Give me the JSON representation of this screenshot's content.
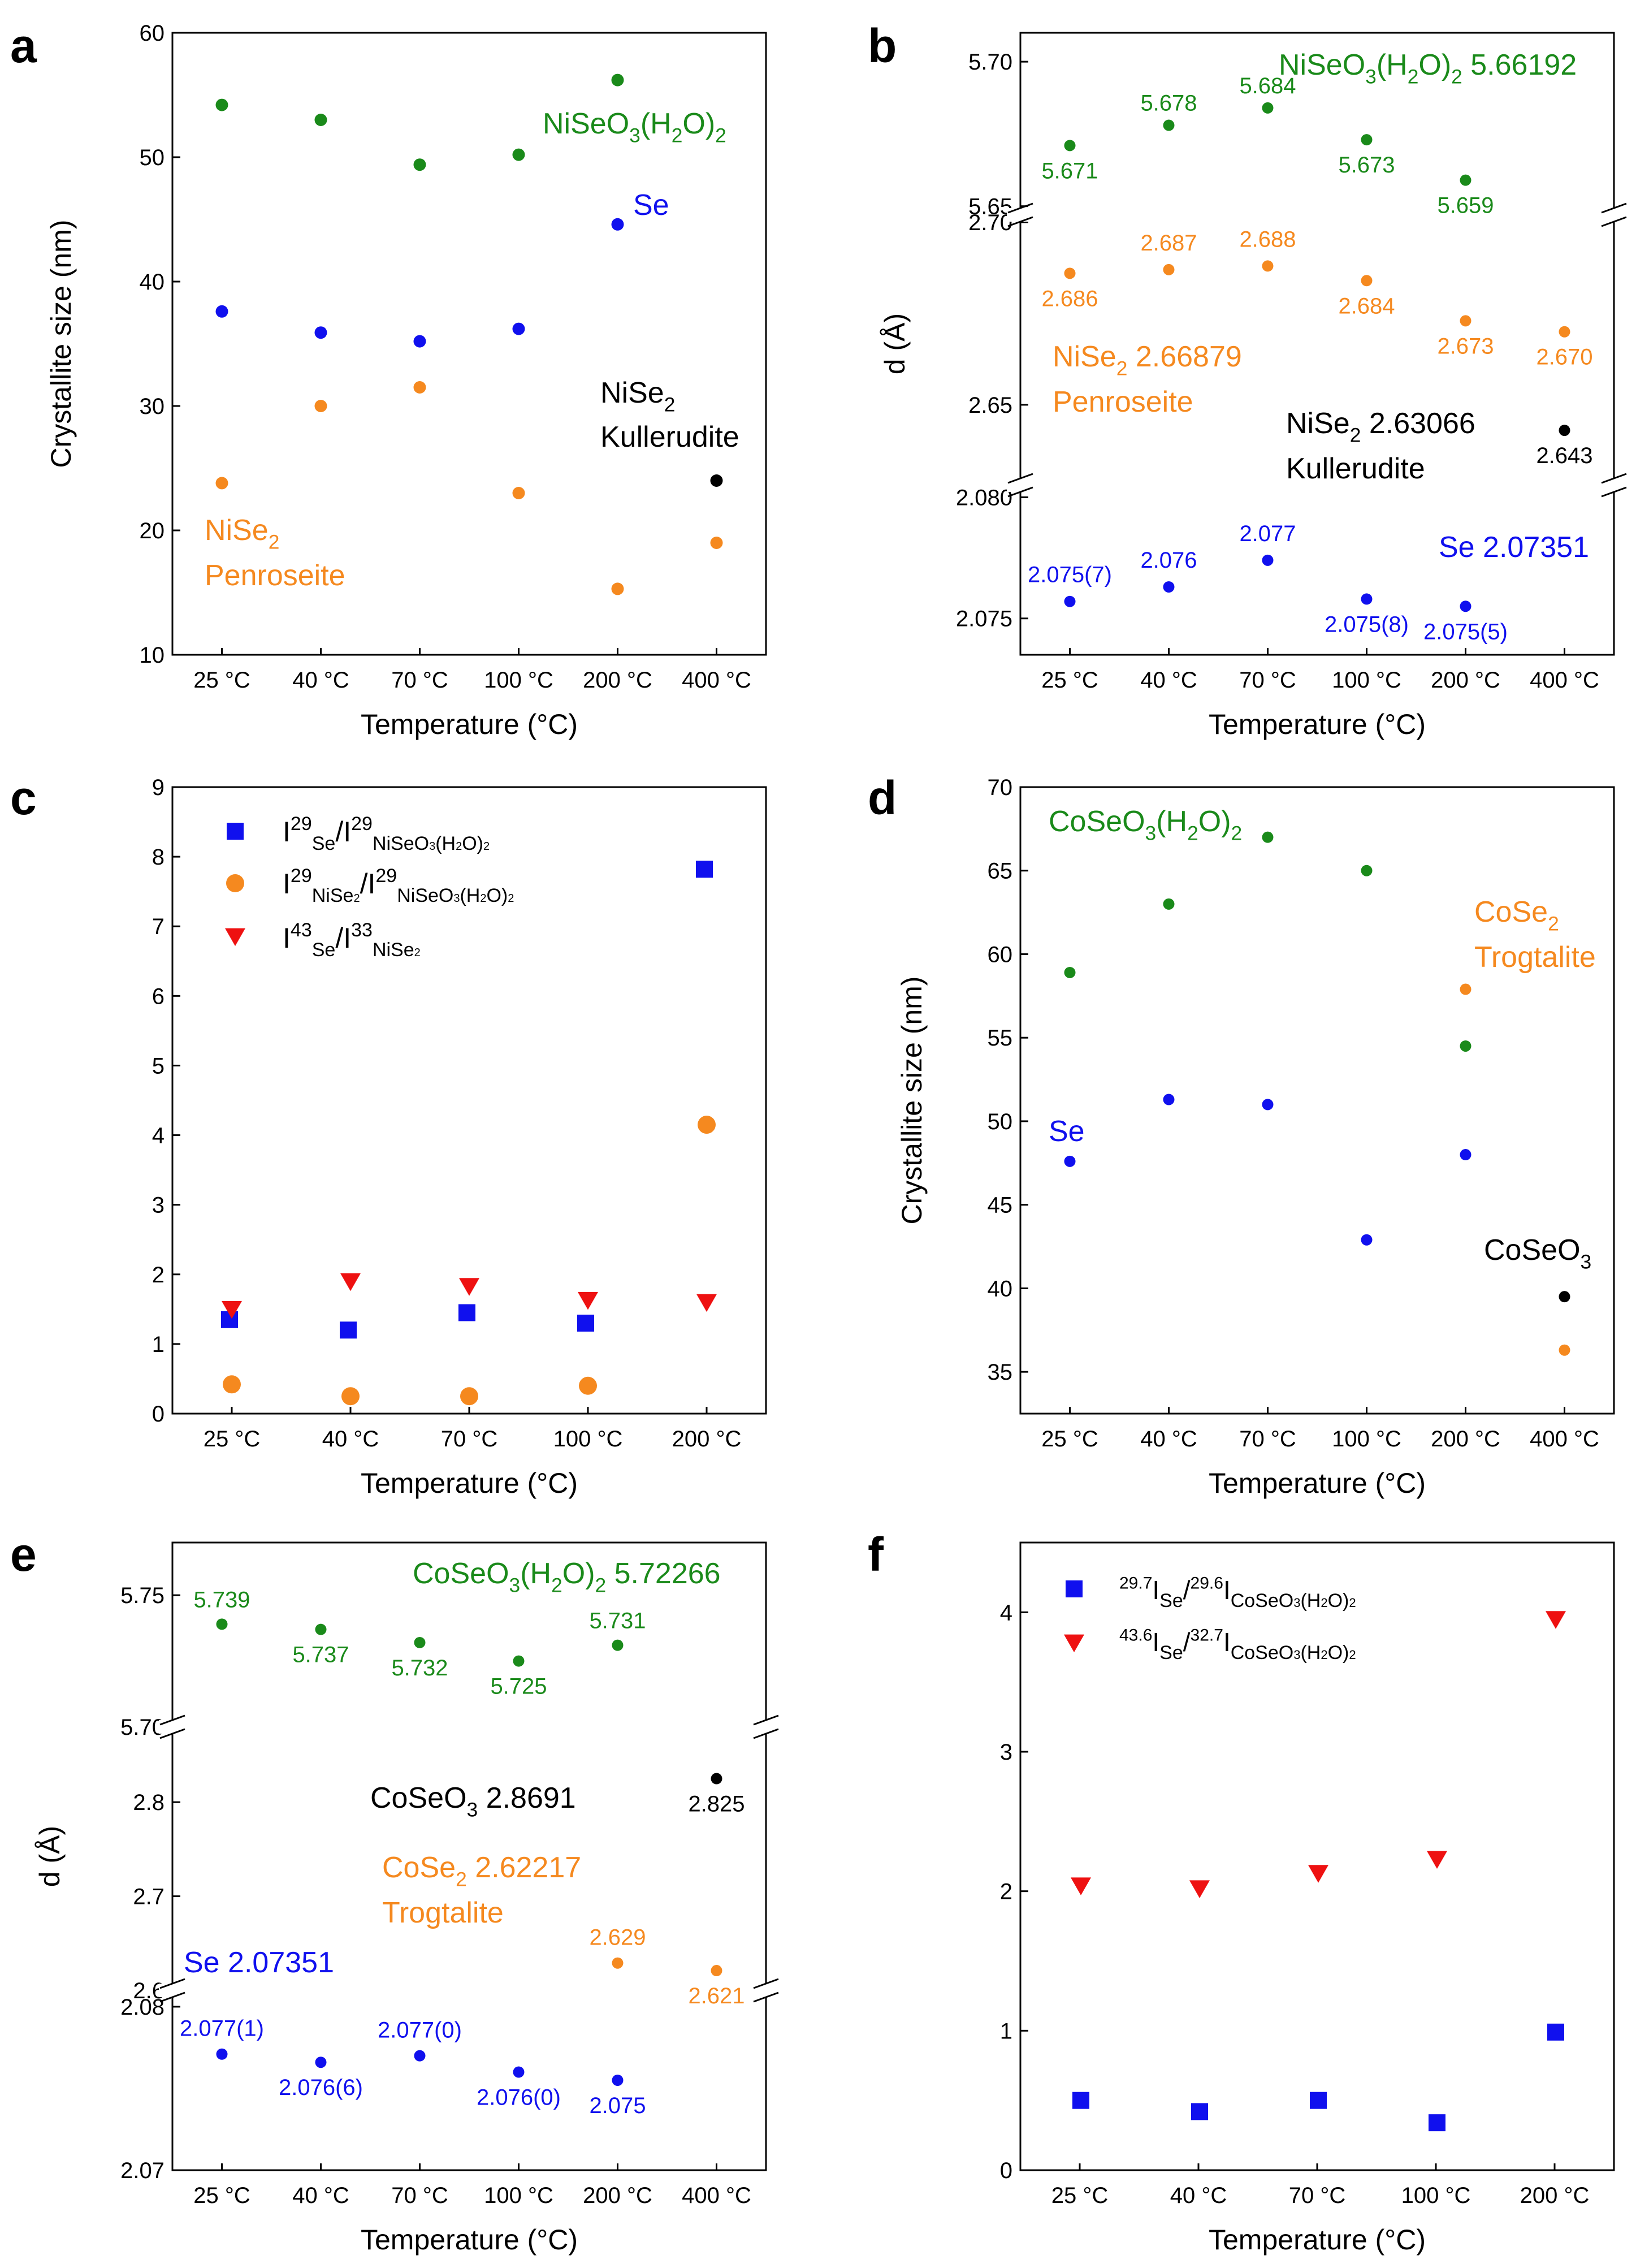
{
  "figure": {
    "temperatures6": [
      "25 °C",
      "40 °C",
      "70 °C",
      "100 °C",
      "200 °C",
      "400 °C"
    ],
    "temperatures5": [
      "25 °C",
      "40 °C",
      "70 °C",
      "100 °C",
      "200 °C"
    ],
    "xlabel": "Temperature (°C)",
    "colors": {
      "green": "#1a8a1a",
      "blue": "#1010ee",
      "orange": "#f5891f",
      "black": "#000000",
      "red": "#ee1111"
    }
  },
  "chart_data": [
    {
      "panel": "a",
      "type": "scatter",
      "xlabel": "Temperature (°C)",
      "ylabel": "Crystallite  size (nm)",
      "categories": [
        "25 °C",
        "40 °C",
        "70 °C",
        "100 °C",
        "200 °C",
        "400 °C"
      ],
      "ylim": [
        10,
        60
      ],
      "yticks": [
        10,
        20,
        30,
        40,
        50,
        60
      ],
      "series": [
        {
          "name": "NiSeO3(H2O)2",
          "color": "#1a8a1a",
          "values": [
            54.2,
            53.0,
            49.4,
            50.2,
            56.2,
            null
          ]
        },
        {
          "name": "Se",
          "color": "#1010ee",
          "values": [
            37.6,
            35.9,
            35.2,
            36.2,
            44.6,
            null
          ]
        },
        {
          "name": "NiSe2 Penroseite",
          "color": "#f5891f",
          "values": [
            23.8,
            30.0,
            31.5,
            23.0,
            15.3,
            19.0
          ]
        },
        {
          "name": "NiSe2 Kullerudite",
          "color": "#000000",
          "values": [
            null,
            null,
            null,
            null,
            null,
            24.0
          ]
        }
      ],
      "annotations": {
        "green": "NiSeO3(H2O)2",
        "blue": "Se",
        "black1": "NiSe2",
        "black2": "Kullerudite",
        "orange1": "NiSe2",
        "orange2": "Penroseite"
      }
    },
    {
      "panel": "b",
      "type": "scatter",
      "broken_axis": true,
      "xlabel": "Temperature (°C)",
      "ylabel": "d (Å)",
      "categories": [
        "25 °C",
        "40 °C",
        "70 °C",
        "100 °C",
        "200 °C",
        "400 °C"
      ],
      "segments": [
        {
          "ylim": [
            5.647,
            5.71
          ],
          "yticks": [
            "5.65",
            "5.70"
          ]
        },
        {
          "ylim": [
            2.628,
            2.702
          ],
          "yticks": [
            "2.65",
            "2.70"
          ]
        },
        {
          "ylim": [
            2.0735,
            2.0805
          ],
          "yticks": [
            "2.075",
            "2.080"
          ]
        }
      ],
      "series": [
        {
          "name": "NiSeO3(H2O)2",
          "color": "#1a8a1a",
          "segment": 0,
          "values": [
            5.671,
            5.678,
            5.684,
            5.673,
            5.659,
            null
          ],
          "labels": [
            "5.671",
            "5.678",
            "5.684",
            "5.673",
            "5.659",
            ""
          ]
        },
        {
          "name": "NiSe2 Penroseite",
          "color": "#f5891f",
          "segment": 1,
          "values": [
            2.686,
            2.687,
            2.688,
            2.684,
            2.673,
            2.67
          ],
          "labels": [
            "2.686",
            "2.687",
            "2.688",
            "2.684",
            "2.673",
            "2.670"
          ]
        },
        {
          "name": "NiSe2 Kullerudite",
          "color": "#000000",
          "segment": 1,
          "values": [
            null,
            null,
            null,
            null,
            null,
            2.643
          ],
          "labels": [
            "",
            "",
            "",
            "",
            "",
            "2.643"
          ]
        },
        {
          "name": "Se",
          "color": "#1010ee",
          "segment": 2,
          "values": [
            2.0757,
            2.0763,
            2.0774,
            2.0758,
            2.0755,
            null
          ],
          "labels": [
            "2.075(7)",
            "2.076",
            "2.077",
            "2.075(8)",
            "2.075(5)",
            ""
          ]
        }
      ],
      "annotations": {
        "green1": "NiSeO3(H2O)2 5.66192",
        "orange1": "NiSe2 2.66879",
        "orange2": "Penroseite",
        "black1": "NiSe2  2.63066",
        "black2": "Kullerudite",
        "blue1": "Se 2.07351"
      }
    },
    {
      "panel": "c",
      "type": "scatter",
      "xlabel": "Temperature (°C)",
      "ylabel": "",
      "categories": [
        "25 °C",
        "40 °C",
        "70 °C",
        "100 °C",
        "200 °C"
      ],
      "ylim": [
        0,
        9
      ],
      "yticks": [
        0,
        1,
        2,
        3,
        4,
        5,
        6,
        7,
        8,
        9
      ],
      "series": [
        {
          "name": "I29Se/I29NiSeO3(H2O)2",
          "color": "#1010ee",
          "marker": "square",
          "values": [
            1.35,
            1.2,
            1.45,
            1.3,
            7.82
          ]
        },
        {
          "name": "I29NiSe2/I29NiSeO3(H2O)2",
          "color": "#f5891f",
          "marker": "circle",
          "values": [
            0.42,
            0.25,
            0.25,
            0.4,
            4.15
          ]
        },
        {
          "name": "I43Se/I33NiSe2",
          "color": "#ee1111",
          "marker": "triangle-down",
          "values": [
            1.5,
            1.9,
            1.83,
            1.63,
            1.6
          ]
        }
      ]
    },
    {
      "panel": "d",
      "type": "scatter",
      "xlabel": "Temperature (°C)",
      "ylabel": "Crystallite  size (nm)",
      "categories": [
        "25 °C",
        "40 °C",
        "70 °C",
        "100 °C",
        "200 °C",
        "400 °C"
      ],
      "ylim": [
        32.5,
        70
      ],
      "yticks": [
        35,
        40,
        45,
        50,
        55,
        60,
        65,
        70
      ],
      "series": [
        {
          "name": "CoSeO3(H2O)2",
          "color": "#1a8a1a",
          "values": [
            58.9,
            63.0,
            67.0,
            65.0,
            54.5,
            null
          ]
        },
        {
          "name": "Se",
          "color": "#1010ee",
          "values": [
            47.6,
            51.3,
            51.0,
            42.9,
            48.0,
            null
          ]
        },
        {
          "name": "CoSe2 Trogtalite",
          "color": "#f5891f",
          "values": [
            null,
            null,
            null,
            null,
            57.9,
            36.3
          ]
        },
        {
          "name": "CoSeO3",
          "color": "#000000",
          "values": [
            null,
            null,
            null,
            null,
            null,
            39.5
          ]
        }
      ],
      "annotations": {
        "green": "CoSeO3(H2O)2",
        "orange1": "CoSe2",
        "orange2": "Trogtalite",
        "blue": "Se",
        "black": "CoSeO3"
      }
    },
    {
      "panel": "e",
      "type": "scatter",
      "broken_axis": true,
      "xlabel": "Temperature (°C)",
      "ylabel": "d (Å)",
      "categories": [
        "25 °C",
        "40 °C",
        "70 °C",
        "100 °C",
        "200 °C",
        "400 °C"
      ],
      "segments": [
        {
          "ylim": [
            5.7,
            5.77
          ],
          "yticks": [
            "5.70",
            "5.75"
          ]
        },
        {
          "ylim": [
            2.6,
            2.88
          ],
          "yticks": [
            "2.6",
            "2.7",
            "2.8"
          ]
        },
        {
          "ylim": [
            2.07,
            2.081
          ],
          "yticks": [
            "2.07",
            "2.08"
          ]
        }
      ],
      "series": [
        {
          "name": "CoSeO3(H2O)2",
          "color": "#1a8a1a",
          "segment": 0,
          "values": [
            5.739,
            5.737,
            5.732,
            5.725,
            5.731,
            null
          ],
          "labels": [
            "5.739",
            "5.737",
            "5.732",
            "5.725",
            "5.731",
            ""
          ]
        },
        {
          "name": "CoSeO3",
          "color": "#000000",
          "segment": 1,
          "values": [
            null,
            null,
            null,
            null,
            null,
            2.825
          ],
          "labels": [
            "",
            "",
            "",
            "",
            "",
            "2.825"
          ]
        },
        {
          "name": "CoSe2 Trogtalite",
          "color": "#f5891f",
          "segment": 1,
          "values": [
            null,
            null,
            null,
            null,
            2.629,
            2.621
          ],
          "labels": [
            "",
            "",
            "",
            "",
            "2.629",
            "2.621"
          ]
        },
        {
          "name": "Se",
          "color": "#1010ee",
          "segment": 2,
          "values": [
            2.0771,
            2.0766,
            2.077,
            2.076,
            2.0755,
            null
          ],
          "labels": [
            "2.077(1)",
            "2.076(6)",
            "2.077(0)",
            "2.076(0)",
            "2.075",
            ""
          ]
        }
      ],
      "annotations": {
        "green1": "CoSeO3(H2O)2 5.72266",
        "black1": "CoSeO3  2.8691",
        "orange1": "CoSe2 2.62217",
        "orange2": "Trogtalite",
        "blue1": "Se 2.07351"
      }
    },
    {
      "panel": "f",
      "type": "scatter",
      "xlabel": "Temperature (°C)",
      "ylabel": "",
      "categories": [
        "25 °C",
        "40 °C",
        "70 °C",
        "100 °C",
        "200 °C"
      ],
      "ylim": [
        0,
        4.5
      ],
      "yticks": [
        0,
        1,
        2,
        3,
        4
      ],
      "series": [
        {
          "name": "29.7ISe/29.6ICoSeO3(H2O)2",
          "color": "#1010ee",
          "marker": "square",
          "values": [
            0.5,
            0.42,
            0.5,
            0.34,
            0.99
          ]
        },
        {
          "name": "43.6ISe/32.7ICoSeO3(H2O)2",
          "color": "#ee1111",
          "marker": "triangle-down",
          "values": [
            2.04,
            2.02,
            2.13,
            2.23,
            3.95
          ]
        }
      ]
    }
  ]
}
